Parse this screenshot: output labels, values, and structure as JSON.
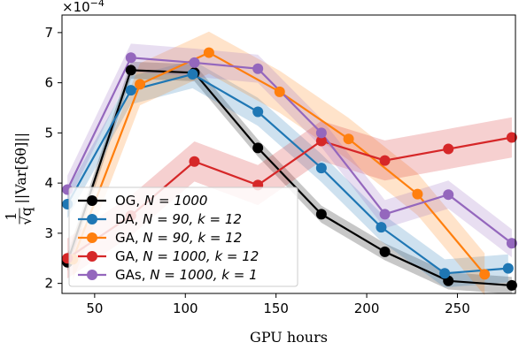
{
  "chart_data": {
    "type": "line",
    "xlabel": "GPU hours",
    "ylabel_parts": {
      "frac_num": "1",
      "frac_den": "√q",
      "expr": "||Var[δθ]||"
    },
    "y_exponent": "×10",
    "y_exponent_power": "−4",
    "xlim": [
      32,
      282
    ],
    "ylim": [
      1.8,
      7.35
    ],
    "xticks": [
      50,
      100,
      150,
      200,
      250
    ],
    "yticks": [
      2,
      3,
      4,
      5,
      6,
      7
    ],
    "legend_position": "lower-left",
    "series": [
      {
        "name": "OG, N = 1000",
        "legend_prefix": "OG, ",
        "legend_math": "N = 1000",
        "color": "#000000",
        "band_color": "#000000",
        "x": [
          35,
          70,
          105,
          140,
          175,
          210,
          245,
          280
        ],
        "y": [
          2.42,
          6.25,
          6.2,
          4.7,
          3.38,
          2.63,
          2.05,
          1.96
        ],
        "band": 0.17
      },
      {
        "name": "DA, N = 90, k = 12",
        "legend_prefix": "DA, ",
        "legend_math": "N = 90, k = 12",
        "color": "#1f77b4",
        "band_color": "#1f77b4",
        "x": [
          35,
          70,
          104,
          140,
          175,
          208,
          243,
          278
        ],
        "y": [
          3.58,
          5.85,
          6.17,
          5.42,
          4.3,
          3.12,
          2.2,
          2.3
        ],
        "band": 0.28
      },
      {
        "name": "GA, N = 90, k = 12",
        "legend_prefix": "GA, ",
        "legend_math": "N = 90, k = 12",
        "color": "#ff7f0e",
        "band_color": "#ff7f0e",
        "x": [
          38,
          75,
          113,
          152,
          190,
          228,
          265
        ],
        "y": [
          2.48,
          5.97,
          6.6,
          5.82,
          4.88,
          3.78,
          2.18
        ],
        "band": 0.42
      },
      {
        "name": "GA, N = 1000, k = 12",
        "legend_prefix": "GA, ",
        "legend_math": "N = 1000, k = 12",
        "color": "#d62728",
        "band_color": "#d62728",
        "x": [
          35,
          70,
          105,
          140,
          175,
          210,
          245,
          280
        ],
        "y": [
          2.5,
          3.35,
          4.43,
          3.96,
          4.84,
          4.45,
          4.68,
          4.91
        ],
        "band": 0.4
      },
      {
        "name": "GAs, N = 1000, k = 1",
        "legend_prefix": "GAs, ",
        "legend_math": "N = 1000, k = 1",
        "color": "#9467bd",
        "band_color": "#9467bd",
        "x": [
          35,
          70,
          105,
          140,
          175,
          210,
          245,
          280
        ],
        "y": [
          3.87,
          6.5,
          6.4,
          6.28,
          5.0,
          3.38,
          3.77,
          2.8
        ],
        "band": 0.28
      }
    ]
  }
}
